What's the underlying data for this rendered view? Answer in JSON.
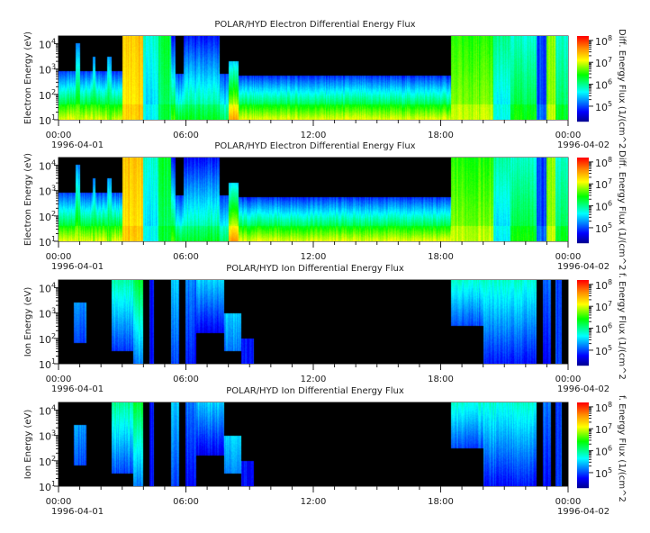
{
  "chart_data": [
    {
      "type": "heatmap",
      "title": "POLAR/HYD  Electron Differential Energy Flux",
      "ylabel": "Electron Energy (eV)",
      "zlabel": "Diff. Energy Flux (1/(cm^2",
      "species": "electron"
    },
    {
      "type": "heatmap",
      "title": "POLAR/HYD  Electron Differential Energy Flux",
      "ylabel": "Electron Energy (eV)",
      "zlabel": "Diff. Energy Flux (1/(cm^2",
      "species": "electron"
    },
    {
      "type": "heatmap",
      "title": "POLAR/HYD  Ion Differential Energy Flux",
      "ylabel": "Ion Energy (eV)",
      "zlabel": "f. Energy Flux (1/(cm^2",
      "species": "ion"
    },
    {
      "type": "heatmap",
      "title": "POLAR/HYD  Ion Differential Energy Flux",
      "ylabel": "Ion Energy (eV)",
      "zlabel": "f. Energy Flux (1/(cm^2",
      "species": "ion"
    }
  ],
  "axes": {
    "x_ticks": [
      "00:00",
      "06:00",
      "12:00",
      "18:00",
      "00:00"
    ],
    "x_tick_hours": [
      0,
      6,
      12,
      18,
      24
    ],
    "x_start_date": "1996-04-01",
    "x_end_date": "1996-04-02",
    "xlim_hours": [
      0,
      24
    ],
    "y_scale": "log",
    "ylim_log10": [
      1,
      4.3
    ],
    "y_ticks_exp": [
      "1",
      "2",
      "3",
      "4"
    ],
    "y_tick_base": "10",
    "z_scale": "log",
    "zlim_log10": [
      4.3,
      8.2
    ],
    "z_ticks_exp": [
      "5",
      "6",
      "7",
      "8"
    ],
    "colormap": "jet",
    "background_no_data": "#000000"
  },
  "spectra": {
    "segment_format": "[hour_start, hour_end, log10_E_low, log10_E_high, log10_flux_at_E_low, log10_flux_at_E_high]",
    "electron": [
      [
        0,
        3,
        1,
        2.9,
        6.9,
        5.0
      ],
      [
        0.8,
        1.0,
        1,
        4.0,
        6.8,
        5.2
      ],
      [
        1.6,
        1.75,
        1,
        3.5,
        6.7,
        5.2
      ],
      [
        2.3,
        2.5,
        1,
        3.5,
        6.6,
        5.3
      ],
      [
        3.0,
        4.0,
        1,
        4.3,
        7.2,
        7.4
      ],
      [
        4.0,
        4.7,
        1,
        4.3,
        5.5,
        5.8
      ],
      [
        4.7,
        5.3,
        1,
        4.3,
        6.1,
        6.3
      ],
      [
        5.3,
        5.5,
        1,
        4.3,
        6.5,
        4.8
      ],
      [
        5.5,
        5.9,
        1,
        2.8,
        6.2,
        5.0
      ],
      [
        5.9,
        7.6,
        1,
        4.3,
        6.2,
        4.8
      ],
      [
        7.6,
        8.0,
        1,
        2.8,
        6.0,
        5.0
      ],
      [
        8.0,
        8.5,
        1,
        3.3,
        7.4,
        5.5
      ],
      [
        8.5,
        18.5,
        1,
        2.75,
        6.9,
        4.9
      ],
      [
        18.5,
        20.5,
        1,
        4.3,
        6.8,
        6.5
      ],
      [
        20.5,
        21.3,
        1,
        4.3,
        5.5,
        6.0
      ],
      [
        21.3,
        22.5,
        1,
        4.3,
        6.3,
        5.8
      ],
      [
        22.5,
        23.0,
        1,
        4.3,
        5.0,
        5.0
      ],
      [
        23.0,
        23.4,
        1,
        4.3,
        6.8,
        6.8
      ],
      [
        23.4,
        24,
        1,
        4.3,
        6.2,
        5.8
      ]
    ],
    "ion": [
      [
        0.7,
        1.3,
        1.8,
        3.4,
        5.0,
        5.3
      ],
      [
        2.5,
        3.5,
        1.5,
        4.3,
        5.0,
        6.0
      ],
      [
        3.5,
        4.0,
        1.0,
        4.3,
        5.2,
        6.3
      ],
      [
        4.3,
        4.5,
        1,
        4.3,
        4.8,
        4.8
      ],
      [
        5.3,
        5.7,
        1,
        4.3,
        5.0,
        5.5
      ],
      [
        6.0,
        6.5,
        1,
        4.3,
        4.8,
        5.2
      ],
      [
        6.5,
        7.8,
        2.2,
        4.3,
        4.7,
        5.5
      ],
      [
        7.8,
        8.6,
        1.5,
        3.0,
        5.2,
        5.5
      ],
      [
        8.6,
        9.2,
        1,
        2.0,
        4.8,
        4.8
      ],
      [
        18.5,
        20,
        2.5,
        4.3,
        5.0,
        5.8
      ],
      [
        20,
        22.5,
        1,
        4.3,
        4.8,
        5.8
      ],
      [
        22.8,
        23.2,
        1,
        4.3,
        4.8,
        5.2
      ],
      [
        23.4,
        23.7,
        1,
        4.3,
        5.0,
        5.0
      ]
    ]
  }
}
